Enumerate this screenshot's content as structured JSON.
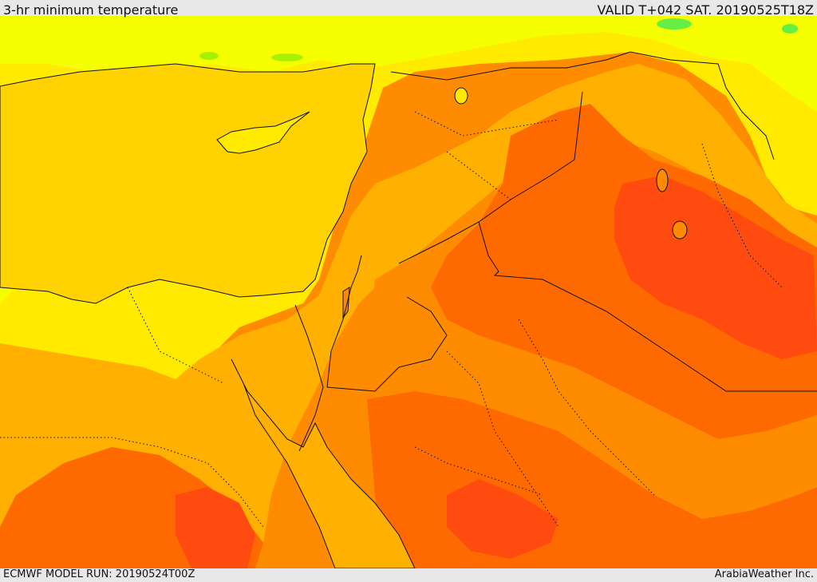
{
  "header": {
    "title": "3-hr minimum temperature",
    "valid": "VALID T+042 SAT. 20190525T18Z"
  },
  "footer": {
    "model_run": "ECMWF MODEL RUN: 20190524T00Z",
    "credit": "ArabiaWeather Inc."
  },
  "map": {
    "palette": {
      "lightest": "#f5ff00",
      "yellow": "#ffea00",
      "gold": "#ffd200",
      "amber": "#ffb000",
      "orange": "#ff8c00",
      "dark_orange": "#ff6a00",
      "red_orange": "#ff4a10",
      "green": "#66ee44",
      "border": "#111111"
    }
  }
}
